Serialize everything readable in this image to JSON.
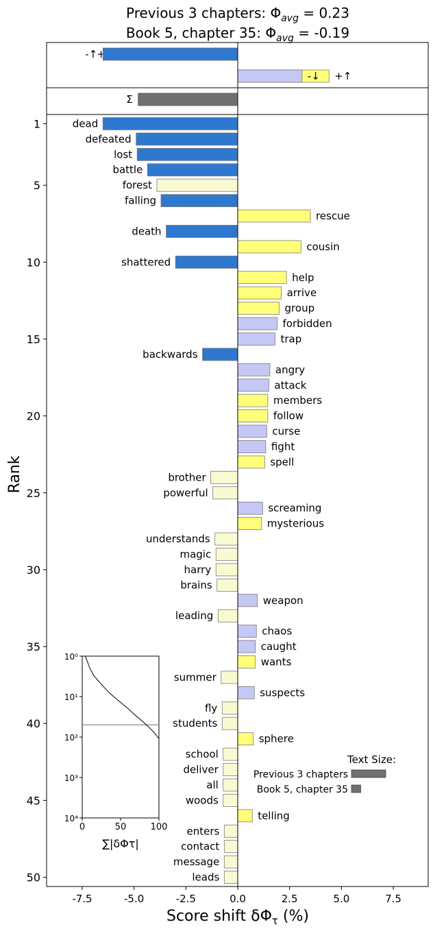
{
  "chart_data": {
    "type": "bar",
    "orientation": "horizontal",
    "title_line1": "Previous 3 chapters: Φ",
    "title_line1_sub": "avg",
    "title_line1_value": " = 0.23",
    "title_line2": "Book 5, chapter 35: Φ",
    "title_line2_sub": "avg",
    "title_line2_value": " = -0.19",
    "xlabel": "Score shift δΦ",
    "xlabel_sub": "τ",
    "xlabel_unit": " (%)",
    "ylabel": "Rank",
    "xlim": [
      -9.2,
      9.2
    ],
    "x_ticks": [
      -7.5,
      -5.0,
      -2.5,
      0.0,
      2.5,
      5.0,
      7.5
    ],
    "x_tick_labels": [
      "-7.5",
      "-5.0",
      "-2.5",
      "0.0",
      "2.5",
      "5.0",
      "7.5"
    ],
    "y_ticks": [
      1,
      5,
      10,
      15,
      20,
      25,
      30,
      35,
      40,
      45,
      50
    ],
    "y_tick_labels": [
      "1",
      "5",
      "10",
      "15",
      "20",
      "25",
      "30",
      "35",
      "40",
      "45",
      "50"
    ],
    "ylim": [
      0.4,
      50.6
    ],
    "colors": {
      "neg_up": "#2f78cf",
      "neg_down": "#fafad2",
      "pos_up": "#ffff7a",
      "pos_down": "#c5c8f5",
      "sum": "#707070",
      "bar_edge": "#7a7a7a"
    },
    "summary_bars": [
      {
        "label": "+↓",
        "value": -5.7,
        "kind": "neg_down"
      },
      {
        "label": "+↑",
        "value": 4.4,
        "kind": "pos_up"
      },
      {
        "label": "-↑",
        "value": -6.5,
        "kind": "neg_up"
      },
      {
        "label": "-↓",
        "value": 3.1,
        "kind": "pos_down"
      },
      {
        "label": "Σ",
        "value": -4.8,
        "kind": "sum"
      }
    ],
    "words": [
      {
        "rank": 1,
        "word": "dead",
        "value": -6.5,
        "kind": "neg_up"
      },
      {
        "rank": 2,
        "word": "defeated",
        "value": -4.9,
        "kind": "neg_up"
      },
      {
        "rank": 3,
        "word": "lost",
        "value": -4.85,
        "kind": "neg_up"
      },
      {
        "rank": 4,
        "word": "battle",
        "value": -4.35,
        "kind": "neg_up"
      },
      {
        "rank": 5,
        "word": "forest",
        "value": -3.9,
        "kind": "neg_down"
      },
      {
        "rank": 6,
        "word": "falling",
        "value": -3.7,
        "kind": "neg_up"
      },
      {
        "rank": 7,
        "word": "rescue",
        "value": 3.5,
        "kind": "pos_up"
      },
      {
        "rank": 8,
        "word": "death",
        "value": -3.45,
        "kind": "neg_up"
      },
      {
        "rank": 9,
        "word": "cousin",
        "value": 3.05,
        "kind": "pos_up"
      },
      {
        "rank": 10,
        "word": "shattered",
        "value": -3.0,
        "kind": "neg_up"
      },
      {
        "rank": 11,
        "word": "help",
        "value": 2.35,
        "kind": "pos_up"
      },
      {
        "rank": 12,
        "word": "arrive",
        "value": 2.1,
        "kind": "pos_up"
      },
      {
        "rank": 13,
        "word": "group",
        "value": 2.0,
        "kind": "pos_up"
      },
      {
        "rank": 14,
        "word": "forbidden",
        "value": 1.9,
        "kind": "pos_down"
      },
      {
        "rank": 15,
        "word": "trap",
        "value": 1.8,
        "kind": "pos_down"
      },
      {
        "rank": 16,
        "word": "backwards",
        "value": -1.7,
        "kind": "neg_up"
      },
      {
        "rank": 17,
        "word": "angry",
        "value": 1.55,
        "kind": "pos_down"
      },
      {
        "rank": 18,
        "word": "attack",
        "value": 1.5,
        "kind": "pos_down"
      },
      {
        "rank": 19,
        "word": "members",
        "value": 1.45,
        "kind": "pos_up"
      },
      {
        "rank": 20,
        "word": "follow",
        "value": 1.45,
        "kind": "pos_up"
      },
      {
        "rank": 21,
        "word": "curse",
        "value": 1.4,
        "kind": "pos_down"
      },
      {
        "rank": 22,
        "word": "fight",
        "value": 1.35,
        "kind": "pos_down"
      },
      {
        "rank": 23,
        "word": "spell",
        "value": 1.3,
        "kind": "pos_up"
      },
      {
        "rank": 24,
        "word": "brother",
        "value": -1.3,
        "kind": "neg_down"
      },
      {
        "rank": 25,
        "word": "powerful",
        "value": -1.2,
        "kind": "neg_down"
      },
      {
        "rank": 26,
        "word": "screaming",
        "value": 1.2,
        "kind": "pos_down"
      },
      {
        "rank": 27,
        "word": "mysterious",
        "value": 1.15,
        "kind": "pos_up"
      },
      {
        "rank": 28,
        "word": "understands",
        "value": -1.1,
        "kind": "neg_down"
      },
      {
        "rank": 29,
        "word": "magic",
        "value": -1.05,
        "kind": "neg_down"
      },
      {
        "rank": 30,
        "word": "harry",
        "value": -1.05,
        "kind": "neg_down"
      },
      {
        "rank": 31,
        "word": "brains",
        "value": -1.0,
        "kind": "neg_down"
      },
      {
        "rank": 32,
        "word": "weapon",
        "value": 0.95,
        "kind": "pos_down"
      },
      {
        "rank": 33,
        "word": "leading",
        "value": -0.95,
        "kind": "neg_down"
      },
      {
        "rank": 34,
        "word": "chaos",
        "value": 0.9,
        "kind": "pos_down"
      },
      {
        "rank": 35,
        "word": "caught",
        "value": 0.85,
        "kind": "pos_down"
      },
      {
        "rank": 36,
        "word": "wants",
        "value": 0.85,
        "kind": "pos_up"
      },
      {
        "rank": 37,
        "word": "summer",
        "value": -0.8,
        "kind": "neg_down"
      },
      {
        "rank": 38,
        "word": "suspects",
        "value": 0.8,
        "kind": "pos_down"
      },
      {
        "rank": 39,
        "word": "fly",
        "value": -0.75,
        "kind": "neg_down"
      },
      {
        "rank": 40,
        "word": "students",
        "value": -0.75,
        "kind": "neg_down"
      },
      {
        "rank": 41,
        "word": "sphere",
        "value": 0.75,
        "kind": "pos_up"
      },
      {
        "rank": 42,
        "word": "school",
        "value": -0.7,
        "kind": "neg_down"
      },
      {
        "rank": 43,
        "word": "deliver",
        "value": -0.7,
        "kind": "neg_down"
      },
      {
        "rank": 44,
        "word": "all",
        "value": -0.7,
        "kind": "neg_down"
      },
      {
        "rank": 45,
        "word": "woods",
        "value": -0.7,
        "kind": "neg_down"
      },
      {
        "rank": 46,
        "word": "telling",
        "value": 0.7,
        "kind": "pos_up"
      },
      {
        "rank": 47,
        "word": "enters",
        "value": -0.65,
        "kind": "neg_down"
      },
      {
        "rank": 48,
        "word": "contact",
        "value": -0.65,
        "kind": "neg_down"
      },
      {
        "rank": 49,
        "word": "message",
        "value": -0.65,
        "kind": "neg_down"
      },
      {
        "rank": 50,
        "word": "leads",
        "value": -0.65,
        "kind": "neg_down"
      }
    ],
    "text_size_legend": {
      "title": "Text Size:",
      "entries": [
        {
          "label": "Previous 3 chapters",
          "value": 1.0
        },
        {
          "label": "Book 5, chapter 35",
          "value": 0.27
        }
      ]
    },
    "inset": {
      "xlabel": "∑|δΦτ|",
      "x_ticks": [
        0,
        50,
        100
      ],
      "x_tick_labels": [
        "0",
        "50",
        "100"
      ],
      "y_tick_labels": [
        "10⁰",
        "10¹",
        "10²",
        "10³",
        "10⁴"
      ],
      "y_scale": "log",
      "hline_rank": 50,
      "curve": [
        {
          "cum": 4,
          "rank": 1
        },
        {
          "cum": 10,
          "rank": 2
        },
        {
          "cum": 15,
          "rank": 3
        },
        {
          "cum": 25,
          "rank": 5
        },
        {
          "cum": 35,
          "rank": 8
        },
        {
          "cum": 48,
          "rank": 13
        },
        {
          "cum": 60,
          "rank": 20
        },
        {
          "cum": 70,
          "rank": 30
        },
        {
          "cum": 78,
          "rank": 40
        },
        {
          "cum": 86,
          "rank": 55
        },
        {
          "cum": 93,
          "rank": 75
        },
        {
          "cum": 100,
          "rank": 110
        }
      ]
    }
  }
}
